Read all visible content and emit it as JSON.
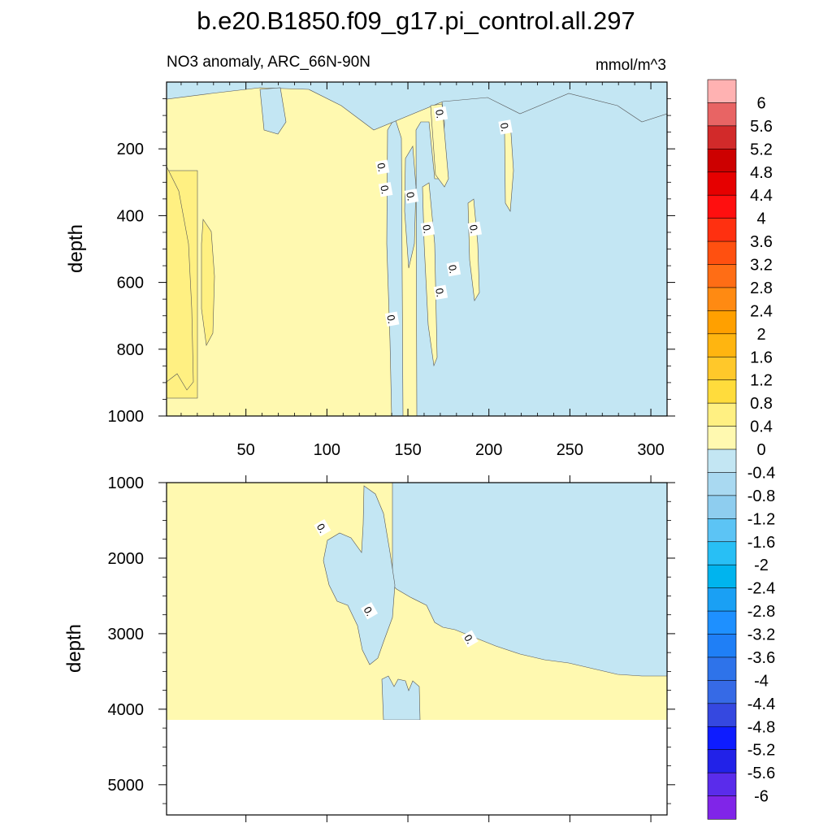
{
  "figure": {
    "title": "b.e20.B1850.f09_g17.pi_control.all.297",
    "left_subtitle": "NO3 anomaly, ARC_66N-90N",
    "right_subtitle": "mmol/m^3"
  },
  "chart_data": [
    {
      "type": "heatmap",
      "panel": "upper",
      "ylabel": "depth",
      "xlim": [
        1,
        310
      ],
      "ylim": [
        1000,
        0
      ],
      "x_ticks": [
        50,
        100,
        150,
        200,
        250,
        300
      ],
      "y_ticks": [
        200,
        400,
        600,
        800,
        1000
      ],
      "contour_labels": [
        {
          "x": 170,
          "y": 95,
          "text": "0."
        },
        {
          "x": 210,
          "y": 135,
          "text": "0."
        },
        {
          "x": 134,
          "y": 255,
          "text": "0."
        },
        {
          "x": 136,
          "y": 322,
          "text": "0."
        },
        {
          "x": 152,
          "y": 342,
          "text": "0."
        },
        {
          "x": 162,
          "y": 440,
          "text": "0."
        },
        {
          "x": 191,
          "y": 440,
          "text": "0."
        },
        {
          "x": 178,
          "y": 560,
          "text": "0."
        },
        {
          "x": 170,
          "y": 630,
          "text": "0."
        },
        {
          "x": 140,
          "y": 710,
          "text": "0."
        }
      ]
    },
    {
      "type": "heatmap",
      "panel": "lower",
      "ylabel": "depth",
      "xlim": [
        1,
        310
      ],
      "ylim": [
        5400,
        1000
      ],
      "y_ticks": [
        1000,
        2000,
        3000,
        4000,
        5000
      ],
      "data_bottom_depth": 4120,
      "contour_labels": [
        {
          "x": 97,
          "y": 1600,
          "text": "0."
        },
        {
          "x": 126,
          "y": 2700,
          "text": "0."
        },
        {
          "x": 188,
          "y": 3070,
          "text": "0."
        }
      ]
    }
  ],
  "colorbar": {
    "labels": [
      "6",
      "5.6",
      "5.2",
      "4.8",
      "4.4",
      "4",
      "3.6",
      "3.2",
      "2.8",
      "2.4",
      "2",
      "1.6",
      "1.2",
      "0.8",
      "0.4",
      "0",
      "-0.4",
      "-0.8",
      "-1.2",
      "-1.6",
      "-2",
      "-2.4",
      "-2.8",
      "-3.2",
      "-3.6",
      "-4",
      "-4.4",
      "-4.8",
      "-5.2",
      "-5.6",
      "-6"
    ],
    "colors": [
      "#FFB2B2",
      "#E86464",
      "#D22A2A",
      "#CD0000",
      "#E60000",
      "#FF0F0F",
      "#FF3010",
      "#FF5010",
      "#FF6D15",
      "#FF8A12",
      "#FFA000",
      "#FFB510",
      "#FFC82A",
      "#FFDC3C",
      "#FFF082",
      "#FFF9B0",
      "#C3E6F3",
      "#A9D9F1",
      "#8ECDEF",
      "#5CC4F5",
      "#28BFF5",
      "#00B4EE",
      "#1AA0F4",
      "#1E90FF",
      "#1F7FF6",
      "#2E73EA",
      "#366AE6",
      "#3548E0",
      "#0E1CFF",
      "#2222E8",
      "#5A2CEB",
      "#8025E8"
    ]
  }
}
